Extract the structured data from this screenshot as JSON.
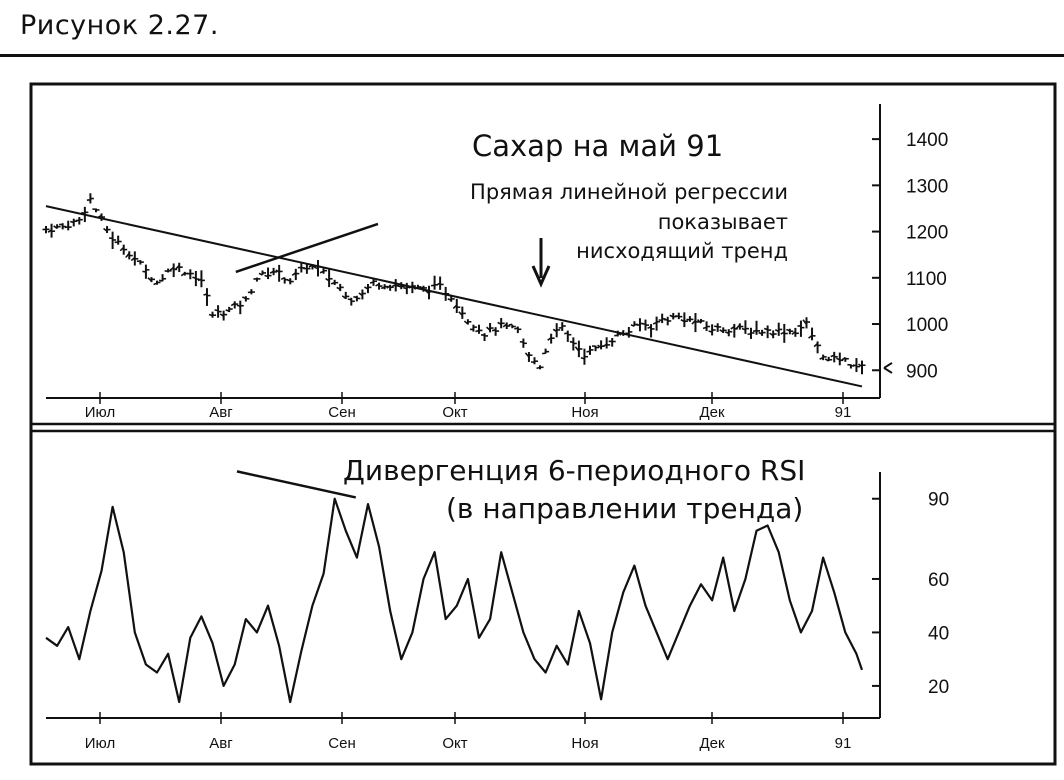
{
  "figure": {
    "caption": "Рисунок 2.27."
  },
  "chart_data": [
    {
      "type": "bar",
      "subtype": "ohlc-price",
      "title": "Сахар на май 91",
      "annotation": {
        "lines": [
          "Прямая линейной регрессии",
          "показывает",
          "нисходящий тренд"
        ],
        "arrow": "down",
        "arrow_at": "Окт-end"
      },
      "months": [
        "Июл",
        "Авг",
        "Сен",
        "Окт",
        "Ноя",
        "Дек",
        "91"
      ],
      "yticks": [
        900,
        1000,
        1100,
        1200,
        1300,
        1400
      ],
      "ylim": [
        840,
        1450
      ],
      "price_anchors": [
        [
          0,
          1205
        ],
        [
          3,
          1210
        ],
        [
          6,
          1225
        ],
        [
          8,
          1270
        ],
        [
          10,
          1225
        ],
        [
          12,
          1185
        ],
        [
          15,
          1155
        ],
        [
          18,
          1115
        ],
        [
          20,
          1090
        ],
        [
          23,
          1125
        ],
        [
          26,
          1110
        ],
        [
          28,
          1095
        ],
        [
          30,
          1020
        ],
        [
          33,
          1030
        ],
        [
          36,
          1050
        ],
        [
          38,
          1100
        ],
        [
          41,
          1115
        ],
        [
          44,
          1095
        ],
        [
          47,
          1125
        ],
        [
          49,
          1120
        ],
        [
          52,
          1090
        ],
        [
          55,
          1055
        ],
        [
          57,
          1065
        ],
        [
          59,
          1090
        ],
        [
          62,
          1085
        ],
        [
          65,
          1080
        ],
        [
          68,
          1075
        ],
        [
          71,
          1080
        ],
        [
          73,
          1060
        ],
        [
          76,
          1010
        ],
        [
          79,
          980
        ],
        [
          82,
          995
        ],
        [
          85,
          985
        ],
        [
          87,
          930
        ],
        [
          89,
          910
        ],
        [
          91,
          975
        ],
        [
          93,
          990
        ],
        [
          95,
          960
        ],
        [
          97,
          935
        ],
        [
          99,
          945
        ],
        [
          101,
          960
        ],
        [
          103,
          975
        ],
        [
          105,
          985
        ],
        [
          107,
          1000
        ],
        [
          109,
          995
        ],
        [
          111,
          1010
        ],
        [
          114,
          1015
        ],
        [
          117,
          1005
        ],
        [
          120,
          990
        ],
        [
          124,
          990
        ],
        [
          128,
          985
        ],
        [
          132,
          985
        ],
        [
          135,
          985
        ],
        [
          137,
          1000
        ],
        [
          139,
          950
        ],
        [
          141,
          920
        ],
        [
          143,
          925
        ],
        [
          145,
          915
        ],
        [
          147,
          905
        ]
      ],
      "regression": {
        "from": [
          0,
          1255
        ],
        "to": [
          147,
          865
        ]
      },
      "trend_marker": {
        "from": [
          36,
          1130
        ],
        "to": [
          58,
          1195
        ]
      }
    },
    {
      "type": "line",
      "title": "Дивергенция 6-периодного RSI",
      "subtitle": "(в направлении тренда)",
      "months": [
        "Июл",
        "Авг",
        "Сен",
        "Окт",
        "Ноя",
        "Дек",
        "91"
      ],
      "yticks": [
        20,
        40,
        60,
        90
      ],
      "ylim": [
        8,
        100
      ],
      "x": [
        0,
        2,
        4,
        6,
        8,
        10,
        12,
        14,
        16,
        18,
        20,
        22,
        24,
        26,
        28,
        30,
        32,
        34,
        36,
        38,
        40,
        42,
        44,
        46,
        48,
        50,
        52,
        54,
        56,
        58,
        60,
        62,
        64,
        66,
        68,
        70,
        72,
        74,
        76,
        78,
        80,
        82,
        84,
        86,
        88,
        90,
        92,
        94,
        96,
        98,
        100,
        102,
        104,
        106,
        108,
        110,
        112,
        114,
        116,
        118,
        120,
        122,
        124,
        126,
        128,
        130,
        132,
        134,
        136,
        138,
        140,
        142,
        144,
        146,
        147
      ],
      "values": [
        38,
        35,
        42,
        30,
        48,
        63,
        87,
        70,
        40,
        28,
        25,
        32,
        14,
        38,
        46,
        36,
        20,
        28,
        45,
        40,
        50,
        35,
        14,
        33,
        50,
        62,
        90,
        78,
        68,
        88,
        72,
        48,
        30,
        40,
        60,
        70,
        45,
        50,
        60,
        38,
        45,
        70,
        55,
        40,
        30,
        25,
        35,
        28,
        48,
        36,
        15,
        40,
        55,
        65,
        50,
        40,
        30,
        40,
        50,
        58,
        52,
        68,
        48,
        60,
        78,
        80,
        70,
        52,
        40,
        48,
        68,
        55,
        40,
        32,
        26
      ],
      "divergence_marker": {
        "from": [
          38,
          92
        ],
        "to": [
          54,
          86
        ]
      }
    }
  ]
}
